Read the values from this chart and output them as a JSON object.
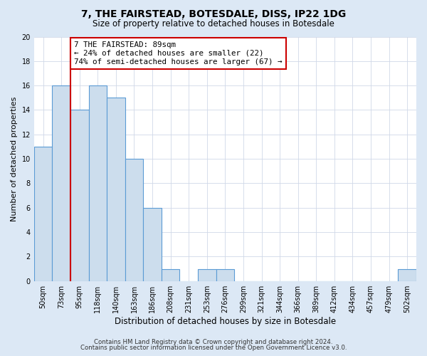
{
  "title": "7, THE FAIRSTEAD, BOTESDALE, DISS, IP22 1DG",
  "subtitle": "Size of property relative to detached houses in Botesdale",
  "xlabel": "Distribution of detached houses by size in Botesdale",
  "ylabel": "Number of detached properties",
  "bar_labels": [
    "50sqm",
    "73sqm",
    "95sqm",
    "118sqm",
    "140sqm",
    "163sqm",
    "186sqm",
    "208sqm",
    "231sqm",
    "253sqm",
    "276sqm",
    "299sqm",
    "321sqm",
    "344sqm",
    "366sqm",
    "389sqm",
    "412sqm",
    "434sqm",
    "457sqm",
    "479sqm",
    "502sqm"
  ],
  "bar_values": [
    11,
    16,
    14,
    16,
    15,
    10,
    6,
    1,
    0,
    1,
    1,
    0,
    0,
    0,
    0,
    0,
    0,
    0,
    0,
    0,
    1
  ],
  "bar_color": "#ccdded",
  "bar_edge_color": "#5b9bd5",
  "subject_line_color": "#cc0000",
  "annotation_title": "7 THE FAIRSTEAD: 89sqm",
  "annotation_line1": "← 24% of detached houses are smaller (22)",
  "annotation_line2": "74% of semi-detached houses are larger (67) →",
  "annotation_box_color": "#ffffff",
  "annotation_box_edge": "#cc0000",
  "ylim": [
    0,
    20
  ],
  "yticks": [
    0,
    2,
    4,
    6,
    8,
    10,
    12,
    14,
    16,
    18,
    20
  ],
  "grid_color": "#d0d8e8",
  "background_color": "#dce8f5",
  "plot_background": "#ffffff",
  "footer_line1": "Contains HM Land Registry data © Crown copyright and database right 2024.",
  "footer_line2": "Contains public sector information licensed under the Open Government Licence v3.0."
}
